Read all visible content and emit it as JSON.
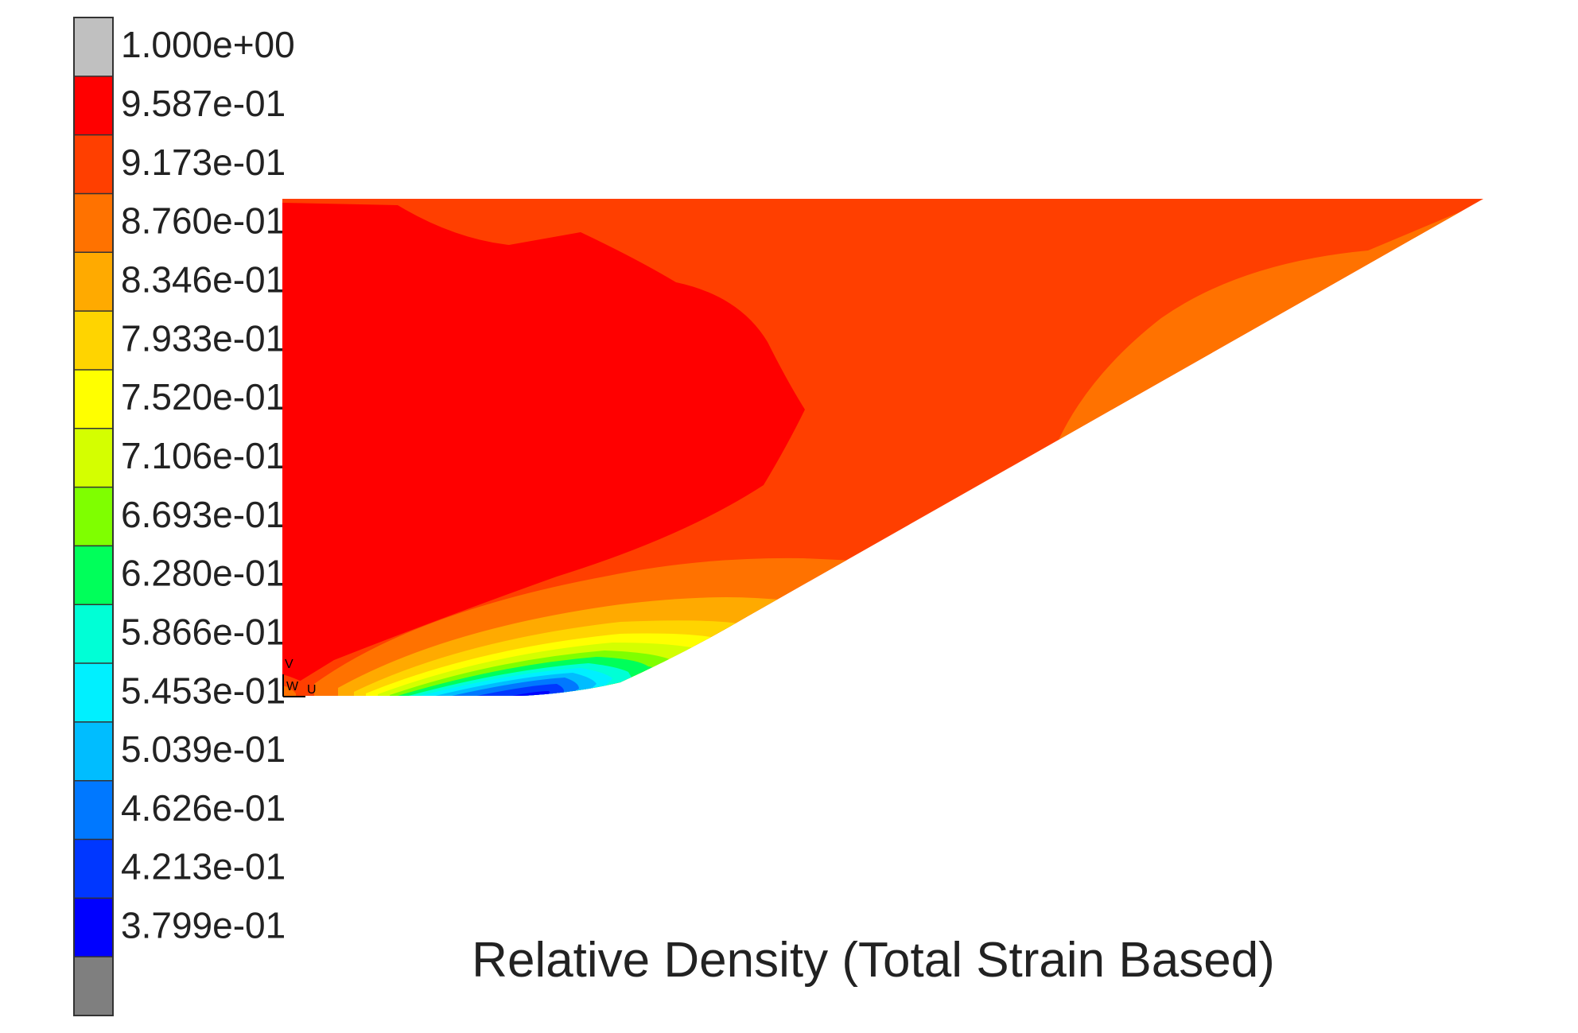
{
  "title": "Relative Density (Total Strain Based)",
  "legend": {
    "bands": [
      {
        "color": "#c0c0c0",
        "label": "1.000e+00"
      },
      {
        "color": "#ff0000",
        "label": "9.587e-01"
      },
      {
        "color": "#ff3f00",
        "label": "9.173e-01"
      },
      {
        "color": "#ff7200",
        "label": "8.760e-01"
      },
      {
        "color": "#ffaa00",
        "label": "8.346e-01"
      },
      {
        "color": "#ffd400",
        "label": "7.933e-01"
      },
      {
        "color": "#ffff00",
        "label": "7.520e-01"
      },
      {
        "color": "#d4ff00",
        "label": "7.106e-01"
      },
      {
        "color": "#7fff00",
        "label": "6.693e-01"
      },
      {
        "color": "#00ff5a",
        "label": "6.280e-01"
      },
      {
        "color": "#00ffd6",
        "label": "5.866e-01"
      },
      {
        "color": "#00f0ff",
        "label": "5.453e-01"
      },
      {
        "color": "#00bdff",
        "label": "5.039e-01"
      },
      {
        "color": "#0078ff",
        "label": "4.626e-01"
      },
      {
        "color": "#0037ff",
        "label": "4.213e-01"
      },
      {
        "color": "#0000ff",
        "label": "3.799e-01"
      },
      {
        "color": "#7f7f7f",
        "label": ""
      }
    ]
  },
  "triad": {
    "v_label": "V",
    "w_label": "W",
    "u_label": "U"
  }
}
